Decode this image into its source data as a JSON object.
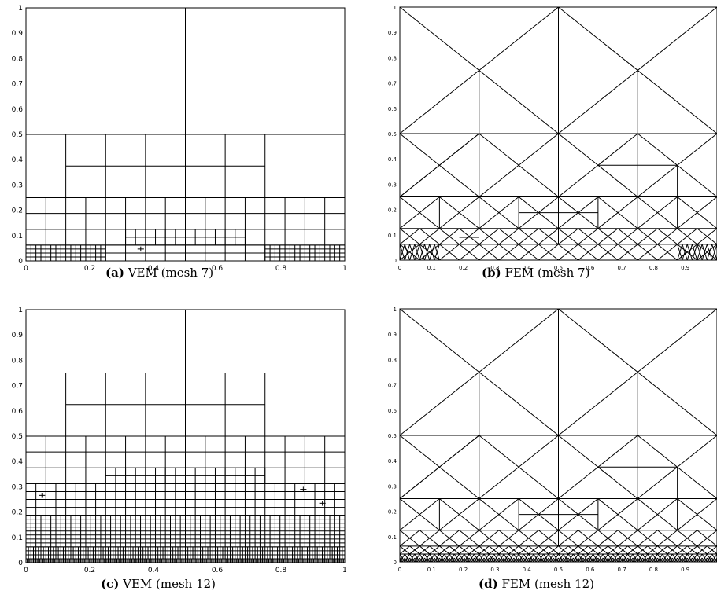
{
  "panels": [
    {
      "id": "a",
      "label": "(a)",
      "text": "VEM (mesh 7)",
      "x_ticks": [
        "0",
        "0.2",
        "0.4",
        "0.6",
        "0.8",
        "1"
      ],
      "y_ticks": [
        "0",
        "0.1",
        "0.2",
        "0.3",
        "0.4",
        "0.5",
        "0.6",
        "0.7",
        "0.8",
        "0.9",
        "1"
      ]
    },
    {
      "id": "b",
      "label": "(b)",
      "text": "FEM (mesh 7)",
      "x_ticks": [
        "0",
        "0.1",
        "0.2",
        "0.3",
        "0.4",
        "0.5",
        "0.6",
        "0.7",
        "0.8",
        "0.9"
      ],
      "y_ticks": [
        "0",
        "0.1",
        "0.2",
        "0.3",
        "0.4",
        "0.5",
        "0.6",
        "0.7",
        "0.8",
        "0.9",
        "1"
      ]
    },
    {
      "id": "c",
      "label": "(c)",
      "text": "VEM (mesh 12)",
      "x_ticks": [
        "0",
        "0.2",
        "0.4",
        "0.6",
        "0.8",
        "1"
      ],
      "y_ticks": [
        "0",
        "0.1",
        "0.2",
        "0.3",
        "0.4",
        "0.5",
        "0.6",
        "0.7",
        "0.8",
        "0.9",
        "1"
      ]
    },
    {
      "id": "d",
      "label": "(d)",
      "text": "FEM (mesh 12)",
      "x_ticks": [
        "0",
        "0.1",
        "0.2",
        "0.3",
        "0.4",
        "0.5",
        "0.6",
        "0.7",
        "0.8",
        "0.9"
      ],
      "y_ticks": [
        "0",
        "0.1",
        "0.2",
        "0.3",
        "0.4",
        "0.5",
        "0.6",
        "0.7",
        "0.8",
        "0.9",
        "1"
      ]
    }
  ]
}
